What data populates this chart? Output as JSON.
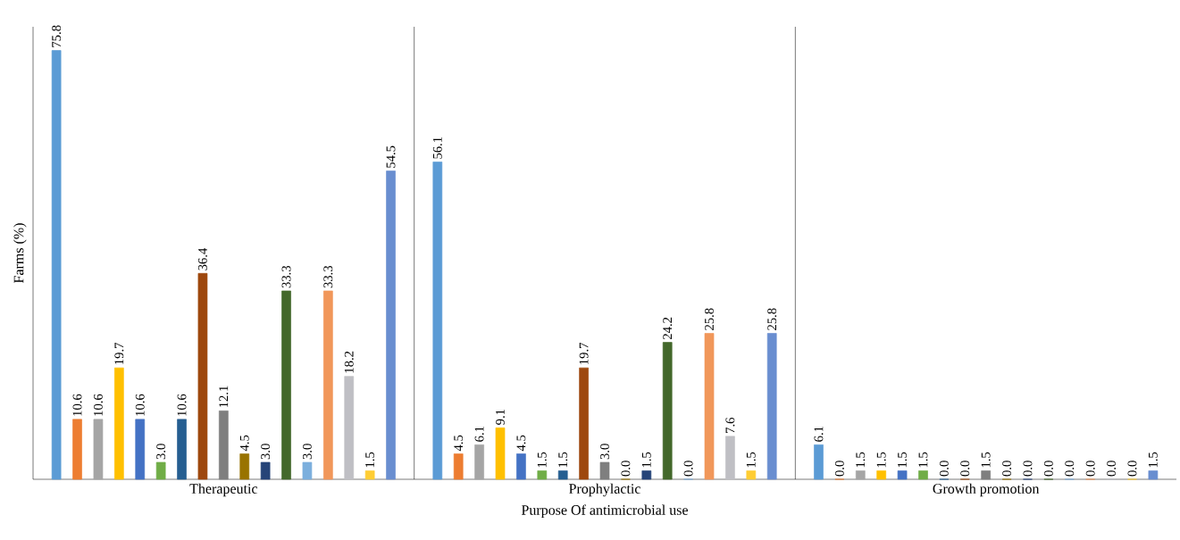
{
  "chart_data": {
    "type": "bar",
    "xlabel": "Purpose Of antimicrobial use",
    "ylabel": "Farms (%)",
    "categories": [
      "Therapeutic",
      "Prophylactic",
      "Growth promotion"
    ],
    "ylim": [
      0,
      80
    ],
    "tick_labels": "x",
    "series": [
      {
        "color": "#5b9bd5",
        "values": [
          75.8,
          56.1,
          6.1
        ],
        "value_labels": [
          "75.8",
          "56.1",
          "6.1"
        ]
      },
      {
        "color": "#ed7d31",
        "values": [
          10.6,
          4.5,
          0.0
        ],
        "value_labels": [
          "10.6",
          "4.5",
          "0.0"
        ]
      },
      {
        "color": "#a5a5a5",
        "values": [
          10.6,
          6.1,
          1.5
        ],
        "value_labels": [
          "10.6",
          "6.1",
          "1.5"
        ]
      },
      {
        "color": "#ffc000",
        "values": [
          19.7,
          9.1,
          1.5
        ],
        "value_labels": [
          "19.7",
          "9.1",
          "1.5"
        ]
      },
      {
        "color": "#4472c4",
        "values": [
          10.6,
          4.5,
          1.5
        ],
        "value_labels": [
          "10.6",
          "4.5",
          "1.5"
        ]
      },
      {
        "color": "#70ad47",
        "values": [
          3.0,
          1.5,
          1.5
        ],
        "value_labels": [
          "3.0",
          "1.5",
          "1.5"
        ]
      },
      {
        "color": "#255e91",
        "values": [
          10.6,
          1.5,
          0.0
        ],
        "value_labels": [
          "10.6",
          "1.5",
          "0.0"
        ]
      },
      {
        "color": "#9e480e",
        "values": [
          36.4,
          19.7,
          0.0
        ],
        "value_labels": [
          "36.4",
          "19.7",
          "0.0"
        ]
      },
      {
        "color": "#7f7f7f",
        "values": [
          12.1,
          3.0,
          1.5
        ],
        "value_labels": [
          "12.1",
          "3.0",
          "1.5"
        ]
      },
      {
        "color": "#997300",
        "values": [
          4.5,
          0.0,
          0.0
        ],
        "value_labels": [
          "4.5",
          "0.0",
          "0.0"
        ]
      },
      {
        "color": "#264478",
        "values": [
          3.0,
          1.5,
          0.0
        ],
        "value_labels": [
          "3.0",
          "1.5",
          "0.0"
        ]
      },
      {
        "color": "#43682b",
        "values": [
          33.3,
          24.2,
          0.0
        ],
        "value_labels": [
          "33.3",
          "24.2",
          "0.0"
        ]
      },
      {
        "color": "#7cafdd",
        "values": [
          3.0,
          0.0,
          0.0
        ],
        "value_labels": [
          "3.0",
          "0.0",
          "0.0"
        ]
      },
      {
        "color": "#f1975a",
        "values": [
          33.3,
          25.8,
          0.0
        ],
        "value_labels": [
          "33.3",
          "25.8",
          "0.0"
        ]
      },
      {
        "color": "#bfbfc4",
        "values": [
          18.2,
          7.6,
          0.0
        ],
        "value_labels": [
          "18.2",
          "7.6",
          "0.0"
        ]
      },
      {
        "color": "#ffcd33",
        "values": [
          1.5,
          1.5,
          0.0
        ],
        "value_labels": [
          "1.5",
          "1.5",
          "0.0"
        ]
      },
      {
        "color": "#698ed0",
        "values": [
          54.5,
          25.8,
          1.5
        ],
        "value_labels": [
          "54.5",
          "25.8",
          "1.5"
        ]
      }
    ]
  }
}
